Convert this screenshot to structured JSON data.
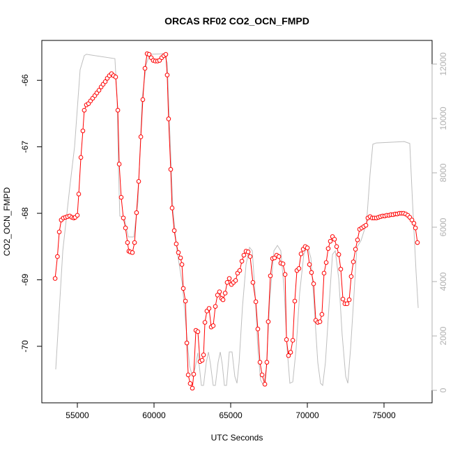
{
  "chart_data": {
    "type": "line",
    "title": "ORCAS RF02 CO2_OCN_FMPD",
    "x_label": "UTC Seconds",
    "y_label": "CO2_OCN_FMPD",
    "xlim": [
      52682,
      78136
    ],
    "xticks": [
      55000,
      60000,
      65000,
      70000,
      75000
    ],
    "ylim": [
      -70.85,
      -65.4
    ],
    "yticks": [
      -70,
      -69,
      -68,
      -67,
      -66
    ],
    "y2lim": [
      -460,
      12870
    ],
    "y2ticks": [
      0,
      2000,
      4000,
      6000,
      8000,
      10000,
      12000
    ],
    "series": [
      {
        "color": "#ff0000",
        "marker": "circle",
        "x": [
          53550,
          53700,
          53820,
          53950,
          54090,
          54230,
          54360,
          54500,
          54640,
          54770,
          54860,
          55000,
          55090,
          55230,
          55360,
          55450,
          55590,
          55730,
          55860,
          56000,
          56140,
          56270,
          56410,
          56550,
          56680,
          56820,
          56950,
          57090,
          57230,
          57360,
          57500,
          57640,
          57730,
          57860,
          58000,
          58140,
          58270,
          58360,
          58450,
          58590,
          58730,
          58860,
          59000,
          59140,
          59270,
          59410,
          59550,
          59680,
          59820,
          59950,
          60090,
          60230,
          60360,
          60500,
          60640,
          60770,
          60860,
          60950,
          61090,
          61180,
          61320,
          61450,
          61590,
          61730,
          61820,
          61910,
          62050,
          62140,
          62230,
          62360,
          62500,
          62590,
          62730,
          62860,
          63000,
          63140,
          63230,
          63320,
          63450,
          63590,
          63730,
          63860,
          64000,
          64140,
          64270,
          64410,
          64500,
          64640,
          64770,
          64910,
          65050,
          65180,
          65320,
          65450,
          65590,
          65730,
          65860,
          66000,
          66140,
          66270,
          66450,
          66640,
          66770,
          66910,
          67050,
          67230,
          67360,
          67450,
          67590,
          67730,
          67860,
          68000,
          68140,
          68270,
          68410,
          68550,
          68640,
          68770,
          68910,
          69050,
          69180,
          69320,
          69450,
          69590,
          69730,
          69860,
          70000,
          70140,
          70270,
          70410,
          70550,
          70680,
          70820,
          70950,
          71090,
          71230,
          71360,
          71500,
          71640,
          71770,
          71910,
          72050,
          72180,
          72320,
          72450,
          72590,
          72730,
          72860,
          73000,
          73140,
          73270,
          73410,
          73550,
          73680,
          73820,
          73950,
          74090,
          74230,
          74360,
          74500,
          74640,
          74770,
          74910,
          75050,
          75180,
          75320,
          75450,
          75590,
          75730,
          75860,
          76000,
          76140,
          76270,
          76410,
          76550,
          76680,
          76820,
          76950,
          77050,
          77180
        ],
        "values": [
          -68.98,
          -68.65,
          -68.28,
          -68.1,
          -68.07,
          -68.06,
          -68.05,
          -68.04,
          -68.06,
          -68.07,
          -68.06,
          -68.03,
          -67.71,
          -67.16,
          -66.76,
          -66.45,
          -66.37,
          -66.35,
          -66.31,
          -66.27,
          -66.23,
          -66.19,
          -66.15,
          -66.1,
          -66.06,
          -66.02,
          -65.97,
          -65.93,
          -65.9,
          -65.93,
          -65.95,
          -66.45,
          -67.26,
          -67.76,
          -68.07,
          -68.22,
          -68.44,
          -68.57,
          -68.58,
          -68.59,
          -68.44,
          -67.99,
          -67.52,
          -66.85,
          -66.29,
          -65.82,
          -65.6,
          -65.61,
          -65.66,
          -65.7,
          -65.71,
          -65.71,
          -65.7,
          -65.66,
          -65.63,
          -65.61,
          -65.92,
          -66.58,
          -67.34,
          -67.92,
          -68.26,
          -68.46,
          -68.59,
          -68.67,
          -68.77,
          -69.13,
          -69.32,
          -69.95,
          -70.43,
          -70.56,
          -70.63,
          -70.42,
          -69.76,
          -69.78,
          -70.23,
          -70.21,
          -70.13,
          -69.64,
          -69.47,
          -69.43,
          -69.71,
          -69.69,
          -69.4,
          -69.23,
          -69.18,
          -69.28,
          -69.3,
          -69.2,
          -69.04,
          -68.98,
          -69.07,
          -69.04,
          -69.01,
          -68.9,
          -68.86,
          -68.72,
          -68.63,
          -68.57,
          -68.58,
          -68.65,
          -69.04,
          -69.33,
          -69.74,
          -70.24,
          -70.43,
          -70.57,
          -70.24,
          -69.63,
          -68.94,
          -68.68,
          -68.67,
          -68.63,
          -68.65,
          -68.75,
          -68.76,
          -68.92,
          -69.9,
          -70.14,
          -70.09,
          -69.91,
          -69.32,
          -68.86,
          -68.83,
          -68.61,
          -68.54,
          -68.5,
          -68.52,
          -68.77,
          -68.89,
          -69.06,
          -69.61,
          -69.64,
          -69.63,
          -69.52,
          -68.9,
          -68.74,
          -68.53,
          -68.42,
          -68.35,
          -68.39,
          -68.5,
          -68.62,
          -68.84,
          -69.29,
          -69.36,
          -69.36,
          -69.3,
          -68.95,
          -68.73,
          -68.54,
          -68.4,
          -68.24,
          -68.22,
          -68.2,
          -68.18,
          -68.07,
          -68.05,
          -68.07,
          -68.07,
          -68.07,
          -68.06,
          -68.05,
          -68.04,
          -68.04,
          -68.03,
          -68.03,
          -68.02,
          -68.02,
          -68.01,
          -68.01,
          -68.0,
          -68.0,
          -68.0,
          -68.01,
          -68.03,
          -68.06,
          -68.1,
          -68.15,
          -68.22,
          -68.44
        ]
      },
      {
        "color": "#bebebe",
        "axis": "y2",
        "x": [
          53590,
          54050,
          54500,
          54820,
          55180,
          55450,
          55590,
          57450,
          57590,
          57680,
          57770,
          58050,
          58320,
          58680,
          58950,
          59230,
          59500,
          59730,
          60640,
          60860,
          61050,
          61230,
          61500,
          61860,
          62090,
          62320,
          62500,
          62680,
          62860,
          63090,
          63230,
          63410,
          63550,
          63680,
          63860,
          64000,
          64180,
          64320,
          64450,
          64590,
          64730,
          64910,
          65090,
          65270,
          65410,
          65550,
          65770,
          66000,
          66230,
          66410,
          66590,
          66770,
          66950,
          67140,
          67320,
          67550,
          67820,
          68050,
          68270,
          68500,
          68680,
          68860,
          69050,
          69270,
          69500,
          69770,
          70000,
          70230,
          70450,
          70680,
          70860,
          71000,
          71180,
          71410,
          71640,
          71820,
          72050,
          72270,
          72500,
          72640,
          72820,
          73050,
          73230,
          73500,
          73860,
          74090,
          74270,
          74500,
          76320,
          76680,
          76860,
          77090,
          77230
        ],
        "values": [
          770,
          5130,
          7440,
          8970,
          11790,
          12310,
          12360,
          12200,
          10770,
          8200,
          6410,
          6360,
          5640,
          5640,
          6920,
          10770,
          12000,
          12360,
          12380,
          12050,
          9230,
          6670,
          5130,
          3850,
          2310,
          900,
          510,
          820,
          1380,
          180,
          180,
          1030,
          1410,
          970,
          180,
          180,
          1030,
          1410,
          970,
          180,
          180,
          1410,
          1410,
          510,
          260,
          1030,
          3080,
          4620,
          5260,
          5130,
          3590,
          1540,
          380,
          180,
          770,
          3330,
          5130,
          5330,
          5130,
          3590,
          1540,
          260,
          310,
          1540,
          3590,
          5000,
          5330,
          4870,
          3080,
          1030,
          260,
          180,
          1030,
          3080,
          5000,
          5130,
          4100,
          2050,
          510,
          260,
          1540,
          3590,
          5260,
          5510,
          6150,
          7950,
          9050,
          9100,
          9150,
          9080,
          6920,
          4360,
          3030
        ]
      }
    ]
  }
}
